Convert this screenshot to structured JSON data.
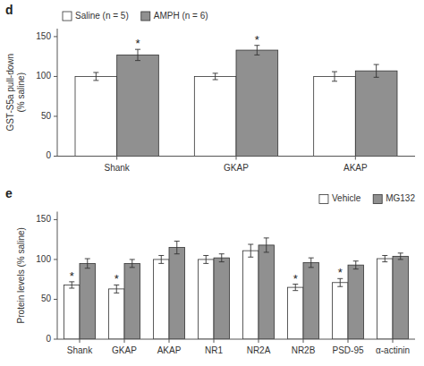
{
  "chart_data": [
    {
      "type": "bar",
      "title": "d",
      "categories": [
        "Shank",
        "GKAP",
        "AKAP"
      ],
      "series": [
        {
          "name": "Saline (n = 5)",
          "color": "#ffffff",
          "values": [
            100,
            100,
            100
          ],
          "errors": [
            5,
            4,
            6
          ]
        },
        {
          "name": "AMPH (n = 6)",
          "color": "#909090",
          "values": [
            127,
            133,
            107
          ],
          "errors": [
            7,
            6,
            8
          ]
        }
      ],
      "y_label": "GST-S5a pull-down\n(% saline)",
      "ylim": [
        0,
        160
      ],
      "yticks": [
        0,
        50,
        100,
        150
      ],
      "legend": "upper left",
      "grid": false,
      "annotations": [
        {
          "text": "*",
          "category": "Shank",
          "series": "AMPH (n = 6)"
        },
        {
          "text": "*",
          "category": "GKAP",
          "series": "AMPH (n = 6)"
        }
      ]
    },
    {
      "type": "bar",
      "title": "e",
      "categories": [
        "Shank",
        "GKAP",
        "AKAP",
        "NR1",
        "NR2A",
        "NR2B",
        "PSD-95",
        "α-actinin"
      ],
      "series": [
        {
          "name": "Vehicle",
          "color": "#ffffff",
          "values": [
            68,
            63,
            100,
            100,
            111,
            65,
            71,
            101
          ],
          "errors": [
            4,
            5,
            5,
            5,
            8,
            4,
            5,
            4
          ]
        },
        {
          "name": "MG132",
          "color": "#909090",
          "values": [
            95,
            95,
            115,
            102,
            118,
            96,
            93,
            104
          ],
          "errors": [
            6,
            5,
            8,
            5,
            9,
            6,
            5,
            4
          ]
        }
      ],
      "y_label": "Protein levels (% saline)",
      "ylim": [
        0,
        160
      ],
      "yticks": [
        0,
        50,
        100,
        150
      ],
      "legend": "upper right",
      "grid": false,
      "annotations": [
        {
          "text": "*",
          "category": "Shank",
          "series": "Vehicle"
        },
        {
          "text": "*",
          "category": "GKAP",
          "series": "Vehicle"
        },
        {
          "text": "*",
          "category": "NR2B",
          "series": "Vehicle"
        },
        {
          "text": "*",
          "category": "PSD-95",
          "series": "Vehicle"
        }
      ]
    }
  ]
}
